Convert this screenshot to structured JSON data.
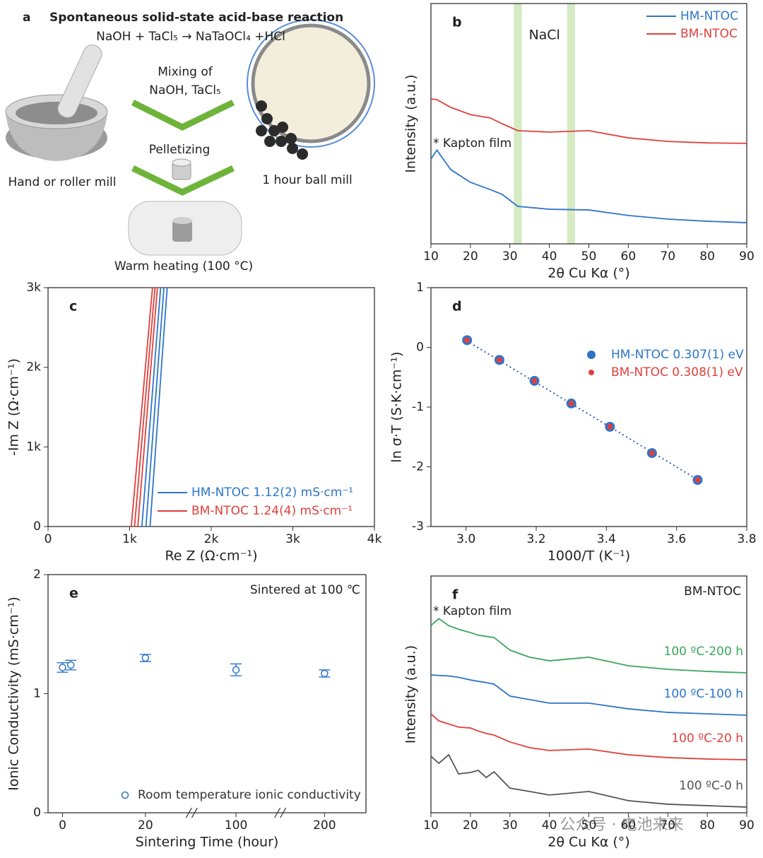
{
  "schematic": {
    "panel_label": "a",
    "title": "Spontaneous solid-state acid-base reaction",
    "equation": "NaOH + TaCl₅ → NaTaOCl₄ +HCl",
    "step_mixing_1": "Mixing of",
    "step_mixing_2": "NaOH, TaCl₅",
    "step_pellet": "Pelletizing",
    "step_heat": "Warm heating (100 °C)",
    "mill_hand": "Hand or roller mill",
    "mill_ball": "1 hour ball mill"
  },
  "watermark": "公众号 · 电池来来",
  "chart_data": [
    {
      "type": "line",
      "panel_label": "b",
      "xlabel": "2θ Cu Kα (°)",
      "ylabel": "Intensity (a.u.)",
      "xlim": [
        10,
        90
      ],
      "xticks": [
        10,
        20,
        30,
        40,
        50,
        60,
        70,
        80,
        90
      ],
      "ylim": [
        0,
        10
      ],
      "legend": "upper right",
      "bands": [
        [
          31,
          33
        ],
        [
          44.5,
          46.5
        ]
      ],
      "annotations": [
        "NaCl",
        "* Kapton film"
      ],
      "x": [
        10,
        11.5,
        15,
        20,
        25,
        28,
        32,
        40,
        50,
        60,
        70,
        80,
        90
      ],
      "series": [
        {
          "name": "HM-NTOC",
          "color": "#2e75c9",
          "values": [
            3.53,
            3.9,
            3.09,
            2.56,
            2.26,
            2.06,
            1.56,
            1.44,
            1.41,
            1.18,
            1.03,
            0.94,
            0.88
          ]
        },
        {
          "name": "BM-NTOC",
          "color": "#e0403c",
          "values": [
            6.03,
            6.0,
            5.68,
            5.38,
            5.24,
            5.0,
            4.71,
            4.65,
            4.71,
            4.41,
            4.26,
            4.2,
            4.18
          ]
        }
      ]
    },
    {
      "type": "line",
      "panel_label": "c",
      "xlabel": "Re Z (Ω·cm⁻¹)",
      "ylabel": "-Im Z (Ω·cm⁻¹)",
      "xlim": [
        0,
        4000
      ],
      "xticks": [
        0,
        {
          "value": 1000,
          "label": "1k"
        },
        {
          "value": 2000,
          "label": "2k"
        },
        {
          "value": 3000,
          "label": "3k"
        },
        {
          "value": 4000,
          "label": "4k"
        }
      ],
      "ylim": [
        0,
        3000
      ],
      "yticks": [
        0,
        {
          "value": 1000,
          "label": "1k"
        },
        {
          "value": 2000,
          "label": "2k"
        },
        {
          "value": 3000,
          "label": "3k"
        }
      ],
      "legend": "lower right",
      "series": [
        {
          "name": "HM-NTOC  1.12(2) mS·cm⁻¹",
          "color": "#2e75c9",
          "traces": [
            {
              "x": [
                1150,
                1380
              ],
              "values": [
                0,
                3000
              ]
            },
            {
              "x": [
                1200,
                1420
              ],
              "values": [
                0,
                3000
              ]
            },
            {
              "x": [
                1250,
                1460
              ],
              "values": [
                0,
                3000
              ]
            }
          ]
        },
        {
          "name": "BM-NTOC  1.24(4) mS·cm⁻¹",
          "color": "#e0403c",
          "traces": [
            {
              "x": [
                1020,
                1280
              ],
              "values": [
                0,
                3000
              ]
            },
            {
              "x": [
                1060,
                1310
              ],
              "values": [
                0,
                3000
              ]
            },
            {
              "x": [
                1100,
                1340
              ],
              "values": [
                0,
                3000
              ]
            }
          ]
        }
      ]
    },
    {
      "type": "scatter",
      "panel_label": "d",
      "xlabel": "1000/T (K⁻¹)",
      "ylabel": "ln σ·T (S·K·cm⁻¹)",
      "xlim": [
        2.9,
        3.8
      ],
      "xticks": [
        {
          "value": 3,
          "label": "3.0"
        },
        3.2,
        3.4,
        3.6,
        3.8
      ],
      "ylim": [
        -3,
        1
      ],
      "yticks": [
        -3,
        -2,
        -1,
        0,
        1
      ],
      "legend": "right",
      "fit": {
        "color": "#2e5fa8",
        "x": [
          2.99,
          3.67
        ],
        "values": [
          0.15,
          -2.25
        ]
      },
      "x": [
        3.003,
        3.095,
        3.195,
        3.3,
        3.41,
        3.53,
        3.66
      ],
      "series": [
        {
          "name": "HM-NTOC 0.307(1) eV",
          "color": "#2e75c9",
          "values": [
            0.12,
            -0.21,
            -0.56,
            -0.94,
            -1.33,
            -1.77,
            -2.22
          ]
        },
        {
          "name": "BM-NTOC 0.308(1) eV",
          "color": "#e0403c",
          "values": [
            0.12,
            -0.21,
            -0.56,
            -0.94,
            -1.33,
            -1.77,
            -2.22
          ]
        }
      ]
    },
    {
      "type": "errorbar",
      "panel_label": "e",
      "subtitle": "Sintered at 100 ℃",
      "xlabel": "Sintering Time (hour)",
      "ylabel": "Ionic Conductivity (mS·cm⁻¹)",
      "xlim": [
        -3.5,
        210
      ],
      "xlim_segments": [
        [
          -3.5,
          30.5
        ],
        [
          90,
          110
        ],
        [
          190,
          210
        ]
      ],
      "xticks": [
        0,
        20,
        100,
        200
      ],
      "ylim": [
        0,
        2
      ],
      "yticks": [
        0,
        1,
        2
      ],
      "legend": "lower left",
      "x": [
        0,
        2,
        20,
        100,
        200
      ],
      "series": [
        {
          "name": "Room temperature ionic conductivity",
          "color": "#2e75c9",
          "values": [
            1.22,
            1.24,
            1.3,
            1.2,
            1.17
          ],
          "errors": [
            0.04,
            0.04,
            0.03,
            0.05,
            0.03
          ]
        }
      ]
    },
    {
      "type": "line",
      "panel_label": "f",
      "subtitle": "BM-NTOC",
      "xlabel": "2θ Cu Kα (°)",
      "ylabel": "Intensity (a.u.)",
      "xlim": [
        10,
        90
      ],
      "xticks": [
        10,
        20,
        30,
        40,
        50,
        60,
        70,
        80,
        90
      ],
      "ylim": [
        0,
        10
      ],
      "legend": "inline",
      "annotations": [
        "* Kapton film"
      ],
      "x": [
        10,
        12,
        14.5,
        17,
        20,
        22,
        24,
        26,
        30,
        35,
        40,
        50,
        60,
        70,
        80,
        90
      ],
      "series": [
        {
          "name": "100 ºC-200 h",
          "color": "#3aa65a",
          "values": [
            7.91,
            8.2,
            7.9,
            7.75,
            7.61,
            7.5,
            7.45,
            7.4,
            6.87,
            6.57,
            6.42,
            6.57,
            6.21,
            6.06,
            5.97,
            5.91
          ]
        },
        {
          "name": "100 ºC-100 h",
          "color": "#2e75c9",
          "values": [
            5.82,
            5.8,
            5.78,
            5.72,
            5.61,
            5.55,
            5.5,
            5.43,
            4.93,
            4.78,
            4.63,
            4.63,
            4.39,
            4.24,
            4.18,
            4.12
          ]
        },
        {
          "name": "100 ºC-20 h",
          "color": "#e0403c",
          "values": [
            4.18,
            3.88,
            3.75,
            3.62,
            3.58,
            3.45,
            3.35,
            3.28,
            2.99,
            2.75,
            2.63,
            2.69,
            2.45,
            2.33,
            2.27,
            2.24
          ]
        },
        {
          "name": "100 ºC-0 h",
          "color": "#555555",
          "values": [
            2.39,
            2.09,
            2.45,
            1.64,
            1.7,
            1.79,
            1.49,
            1.73,
            1.04,
            0.9,
            0.75,
            0.9,
            0.51,
            0.36,
            0.3,
            0.24
          ]
        }
      ]
    }
  ]
}
